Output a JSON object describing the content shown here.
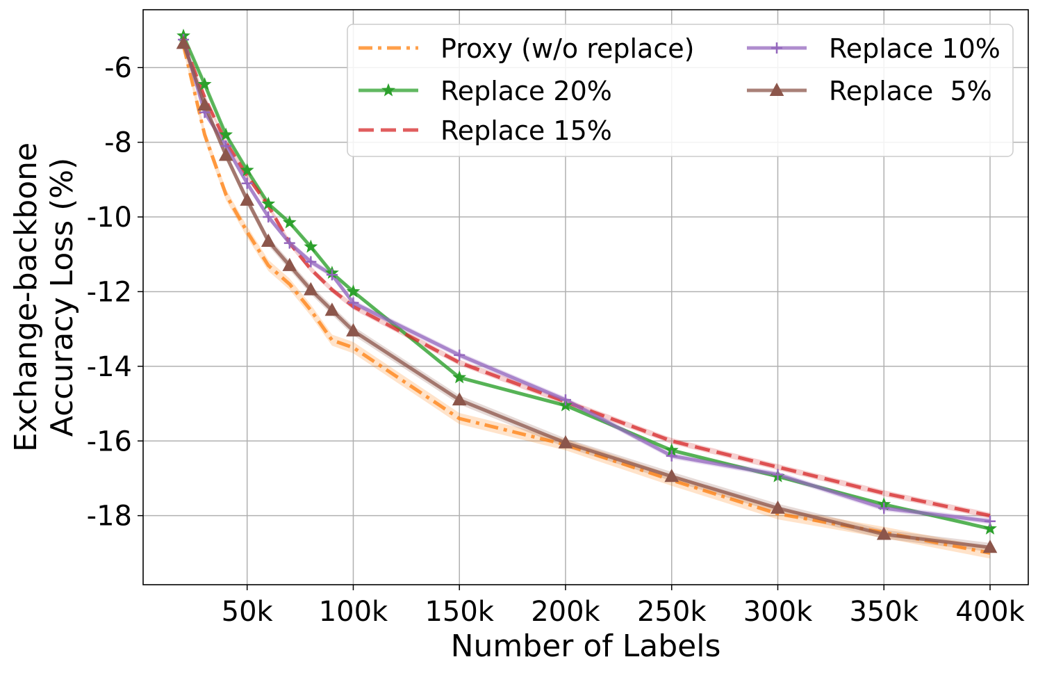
{
  "chart_data": {
    "type": "line",
    "title": "",
    "xlabel": "Number of Labels",
    "ylabel_lines": [
      "Exchange-backbone",
      "Accuracy Loss (%)"
    ],
    "xlim": [
      1000,
      418000
    ],
    "ylim": [
      -19.85,
      -4.45
    ],
    "x_ticks": [
      50000,
      100000,
      150000,
      200000,
      250000,
      300000,
      350000,
      400000
    ],
    "x_tick_labels": [
      "50k",
      "100k",
      "150k",
      "200k",
      "250k",
      "300k",
      "350k",
      "400k"
    ],
    "y_ticks": [
      -6,
      -8,
      -10,
      -12,
      -14,
      -16,
      -18
    ],
    "y_tick_labels": [
      "-6",
      "-8",
      "-10",
      "-12",
      "-14",
      "-16",
      "-18"
    ],
    "grid": true,
    "legend": {
      "placement": "top-right",
      "columns": 2
    },
    "series": [
      {
        "name": "Proxy (w/o replace)",
        "color": "#ff7f0e",
        "dash": "dashdot",
        "marker": "none",
        "x": [
          20000,
          30000,
          40000,
          50000,
          60000,
          70000,
          80000,
          90000,
          100000,
          150000,
          200000,
          250000,
          300000,
          350000,
          400000
        ],
        "y": [
          -5.4,
          -7.8,
          -9.4,
          -10.4,
          -11.3,
          -11.8,
          -12.5,
          -13.3,
          -13.5,
          -15.4,
          -16.1,
          -17.05,
          -17.95,
          -18.45,
          -19.0
        ],
        "band": 0.15
      },
      {
        "name": "Replace 20%",
        "color": "#2ca02c",
        "dash": "solid",
        "marker": "star",
        "x": [
          20000,
          30000,
          40000,
          50000,
          60000,
          70000,
          80000,
          90000,
          100000,
          150000,
          200000,
          250000,
          300000,
          350000,
          400000
        ],
        "y": [
          -5.15,
          -6.45,
          -7.8,
          -8.75,
          -9.65,
          -10.15,
          -10.8,
          -11.5,
          -12.0,
          -14.3,
          -15.05,
          -16.25,
          -16.95,
          -17.7,
          -18.35
        ],
        "band": 0.05
      },
      {
        "name": "Replace 15%",
        "color": "#d62728",
        "dash": "dashed",
        "marker": "none",
        "x": [
          20000,
          30000,
          40000,
          50000,
          60000,
          70000,
          80000,
          90000,
          100000,
          150000,
          200000,
          250000,
          300000,
          350000,
          400000
        ],
        "y": [
          -5.3,
          -6.8,
          -8.0,
          -8.9,
          -9.7,
          -10.7,
          -11.4,
          -11.95,
          -12.4,
          -13.9,
          -14.95,
          -16.0,
          -16.7,
          -17.4,
          -18.0
        ],
        "band": 0.08
      },
      {
        "name": "Replace 10%",
        "color": "#9467bd",
        "dash": "solid",
        "marker": "plus",
        "x": [
          20000,
          30000,
          40000,
          50000,
          60000,
          70000,
          80000,
          90000,
          100000,
          150000,
          200000,
          250000,
          300000,
          350000,
          400000
        ],
        "y": [
          -5.25,
          -7.2,
          -8.1,
          -9.1,
          -10.0,
          -10.7,
          -11.2,
          -11.55,
          -12.3,
          -13.7,
          -14.9,
          -16.4,
          -16.9,
          -17.8,
          -18.15
        ],
        "band": 0.08
      },
      {
        "name": "Replace  5%",
        "color": "#8c564b",
        "dash": "solid",
        "marker": "triangle",
        "x": [
          20000,
          30000,
          40000,
          50000,
          60000,
          70000,
          80000,
          90000,
          100000,
          150000,
          200000,
          250000,
          300000,
          350000,
          400000
        ],
        "y": [
          -5.35,
          -7.0,
          -8.35,
          -9.55,
          -10.65,
          -11.3,
          -11.95,
          -12.5,
          -13.05,
          -14.9,
          -16.05,
          -16.95,
          -17.8,
          -18.5,
          -18.85
        ],
        "band": 0.12
      }
    ]
  }
}
